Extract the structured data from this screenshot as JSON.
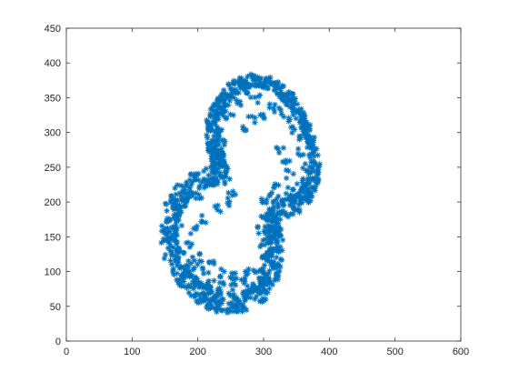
{
  "chart_data": {
    "type": "scatter",
    "title": "",
    "xlabel": "",
    "ylabel": "",
    "xlim": [
      0,
      600
    ],
    "ylim": [
      0,
      450
    ],
    "xticks": [
      "0",
      "100",
      "200",
      "300",
      "400",
      "500",
      "600"
    ],
    "yticks": [
      "0",
      "50",
      "100",
      "150",
      "200",
      "250",
      "300",
      "350",
      "400",
      "450"
    ],
    "marker": "asterisk",
    "color": "#0072BD",
    "grid": false,
    "series": [
      {
        "outer_boundary": [
          [
            245,
            38
          ],
          [
            275,
            45
          ],
          [
            305,
            62
          ],
          [
            325,
            92
          ],
          [
            330,
            120
          ],
          [
            328,
            150
          ],
          [
            322,
            172
          ],
          [
            350,
            183
          ],
          [
            372,
            200
          ],
          [
            383,
            225
          ],
          [
            385,
            255
          ],
          [
            378,
            290
          ],
          [
            362,
            330
          ],
          [
            340,
            360
          ],
          [
            312,
            380
          ],
          [
            280,
            383
          ],
          [
            248,
            372
          ],
          [
            224,
            345
          ],
          [
            212,
            315
          ],
          [
            213,
            282
          ],
          [
            222,
            258
          ],
          [
            205,
            248
          ],
          [
            172,
            230
          ],
          [
            150,
            198
          ],
          [
            140,
            160
          ],
          [
            148,
            118
          ],
          [
            168,
            82
          ],
          [
            200,
            55
          ],
          [
            222,
            43
          ],
          [
            245,
            38
          ]
        ],
        "inner_boundary": [
          [
            255,
            70
          ],
          [
            275,
            75
          ],
          [
            290,
            88
          ],
          [
            300,
            110
          ],
          [
            305,
            135
          ],
          [
            300,
            165
          ],
          [
            310,
            190
          ],
          [
            330,
            205
          ],
          [
            352,
            213
          ],
          [
            366,
            232
          ],
          [
            370,
            258
          ],
          [
            365,
            288
          ],
          [
            352,
            318
          ],
          [
            330,
            345
          ],
          [
            305,
            363
          ],
          [
            282,
            367
          ],
          [
            262,
            358
          ],
          [
            244,
            335
          ],
          [
            232,
            310
          ],
          [
            235,
            282
          ],
          [
            246,
            255
          ],
          [
            248,
            228
          ],
          [
            226,
            225
          ],
          [
            196,
            212
          ],
          [
            175,
            185
          ],
          [
            168,
            152
          ],
          [
            175,
            120
          ],
          [
            198,
            92
          ],
          [
            226,
            75
          ],
          [
            255,
            70
          ]
        ],
        "inner_scatter": [
          [
            180,
            95
          ],
          [
            185,
            110
          ],
          [
            175,
            125
          ],
          [
            195,
            115
          ],
          [
            190,
            100
          ],
          [
            205,
            120
          ],
          [
            200,
            88
          ],
          [
            165,
            130
          ],
          [
            160,
            150
          ],
          [
            170,
            165
          ],
          [
            165,
            178
          ],
          [
            178,
            200
          ],
          [
            200,
            205
          ],
          [
            215,
            222
          ],
          [
            228,
            240
          ],
          [
            238,
            262
          ],
          [
            240,
            285
          ],
          [
            232,
            300
          ],
          [
            248,
            325
          ],
          [
            260,
            345
          ],
          [
            275,
            352
          ],
          [
            290,
            348
          ],
          [
            300,
            325
          ],
          [
            312,
            340
          ],
          [
            322,
            330
          ],
          [
            335,
            320
          ],
          [
            345,
            305
          ],
          [
            352,
            292
          ],
          [
            358,
            272
          ],
          [
            362,
            250
          ],
          [
            355,
            232
          ],
          [
            340,
            218
          ],
          [
            325,
            205
          ],
          [
            310,
            195
          ],
          [
            302,
            180
          ],
          [
            296,
            160
          ],
          [
            300,
            140
          ],
          [
            298,
            118
          ],
          [
            290,
            98
          ],
          [
            272,
            85
          ],
          [
            255,
            78
          ],
          [
            238,
            78
          ],
          [
            220,
            85
          ],
          [
            212,
            100
          ],
          [
            222,
            110
          ],
          [
            236,
            98
          ],
          [
            248,
            92
          ],
          [
            262,
            92
          ],
          [
            276,
            100
          ],
          [
            310,
            215
          ],
          [
            320,
            225
          ],
          [
            300,
            205
          ],
          [
            185,
            140
          ],
          [
            195,
            160
          ],
          [
            208,
            175
          ],
          [
            230,
            190
          ],
          [
            245,
            200
          ],
          [
            252,
            210
          ],
          [
            268,
            305
          ],
          [
            282,
            318
          ],
          [
            335,
            255
          ],
          [
            340,
            240
          ],
          [
            325,
            275
          ]
        ]
      }
    ]
  }
}
